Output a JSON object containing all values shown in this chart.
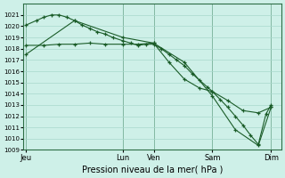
{
  "bg_color": "#cef0e8",
  "grid_color": "#a8d8cc",
  "line_color": "#1a5c28",
  "xlabel": "Pression niveau de la mer( hPa )",
  "ylim": [
    1009,
    1022
  ],
  "yticks": [
    1009,
    1010,
    1011,
    1012,
    1013,
    1014,
    1015,
    1016,
    1017,
    1018,
    1019,
    1020,
    1021
  ],
  "xtick_labels": [
    "Jeu",
    "Lun",
    "Ven",
    "Sam",
    "Dim"
  ],
  "xtick_pos": [
    0.0,
    0.38,
    0.5,
    0.73,
    0.96
  ],
  "vline_pos": [
    0.0,
    0.38,
    0.5,
    0.73,
    0.96
  ],
  "line1_x": [
    0.0,
    0.04,
    0.07,
    0.1,
    0.13,
    0.16,
    0.19,
    0.22,
    0.25,
    0.28,
    0.31,
    0.34,
    0.38,
    0.41,
    0.44,
    0.47,
    0.5,
    0.53,
    0.56,
    0.59,
    0.62,
    0.65,
    0.68,
    0.71,
    0.73,
    0.76,
    0.79,
    0.82,
    0.85,
    0.88,
    0.91,
    0.94,
    0.96
  ],
  "line1_y": [
    1020.1,
    1020.5,
    1020.8,
    1021.0,
    1021.0,
    1020.8,
    1020.5,
    1020.1,
    1019.8,
    1019.5,
    1019.3,
    1019.0,
    1018.7,
    1018.5,
    1018.3,
    1018.4,
    1018.4,
    1018.0,
    1017.5,
    1017.0,
    1016.5,
    1015.8,
    1015.2,
    1014.6,
    1014.2,
    1013.5,
    1012.8,
    1012.0,
    1011.2,
    1010.3,
    1009.5,
    1012.2,
    1013.0
  ],
  "line2_x": [
    0.0,
    0.07,
    0.13,
    0.19,
    0.25,
    0.31,
    0.38,
    0.44,
    0.5,
    0.56,
    0.62,
    0.68,
    0.73,
    0.79,
    0.85,
    0.91,
    0.96
  ],
  "line2_y": [
    1018.3,
    1018.3,
    1018.4,
    1018.4,
    1018.5,
    1018.4,
    1018.4,
    1018.4,
    1018.5,
    1016.8,
    1015.3,
    1014.5,
    1014.2,
    1013.4,
    1012.5,
    1012.3,
    1012.8
  ],
  "line3_x": [
    0.0,
    0.19,
    0.38,
    0.5,
    0.62,
    0.73,
    0.82,
    0.91,
    0.96
  ],
  "line3_y": [
    1017.5,
    1020.5,
    1019.0,
    1018.5,
    1016.8,
    1013.8,
    1010.8,
    1009.4,
    1012.8
  ]
}
